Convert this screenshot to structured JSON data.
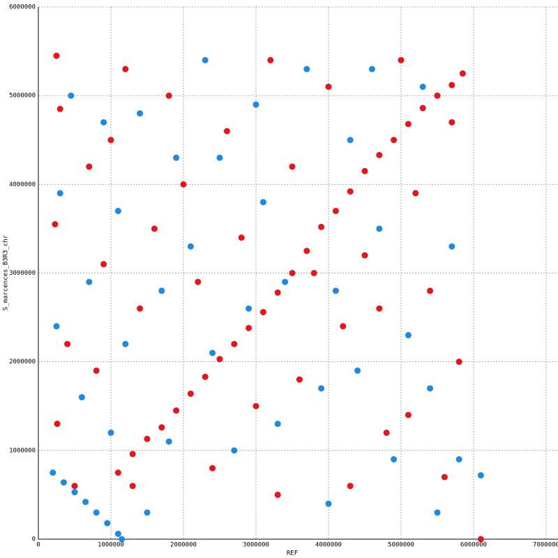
{
  "chart_data": {
    "type": "scatter",
    "xlabel": "REF",
    "ylabel": "S_marcences_B3R3_chr",
    "xlim": [
      0,
      7000000
    ],
    "xticks": [
      0,
      1000000,
      2000000,
      3000000,
      4000000,
      5000000,
      6000000,
      7000000
    ],
    "ylim": [
      0,
      6000000
    ],
    "yticks": [
      0,
      1000000,
      2000000,
      3000000,
      4000000,
      5000000,
      6000000
    ],
    "grid": true,
    "series": [
      {
        "color": "#e8141a",
        "x": [
          1100000,
          1300000,
          1500000,
          1700000,
          1900000,
          2100000,
          2300000,
          2500000,
          2700000,
          2900000,
          3100000,
          3300000,
          3500000,
          3700000,
          3900000,
          4100000,
          4300000,
          4500000,
          4700000,
          4900000,
          5100000,
          5300000,
          5500000,
          5700000,
          5850000,
          250000,
          300000,
          230000,
          400000,
          260000,
          500000,
          700000,
          900000,
          800000,
          1200000,
          1000000,
          1400000,
          1300000,
          1600000,
          1800000,
          2000000,
          2200000,
          2400000,
          2600000,
          2800000,
          3000000,
          3200000,
          3300000,
          3500000,
          3600000,
          3800000,
          4000000,
          4200000,
          4300000,
          4500000,
          4700000,
          4800000,
          5000000,
          5100000,
          5200000,
          5400000,
          5600000,
          5700000,
          5800000,
          6100000
        ],
        "values": [
          750000,
          960000,
          1130000,
          1260000,
          1450000,
          1640000,
          1830000,
          2030000,
          2200000,
          2380000,
          2560000,
          2780000,
          3000000,
          3250000,
          3520000,
          3700000,
          3920000,
          4150000,
          4330000,
          4500000,
          4680000,
          4860000,
          5000000,
          5120000,
          5250000,
          5450000,
          4850000,
          3550000,
          2200000,
          1300000,
          600000,
          4200000,
          3100000,
          1900000,
          5300000,
          4500000,
          2600000,
          600000,
          3500000,
          5000000,
          4000000,
          2900000,
          800000,
          4600000,
          3400000,
          1500000,
          5400000,
          500000,
          4200000,
          1800000,
          3000000,
          5100000,
          2400000,
          600000,
          3200000,
          2600000,
          1200000,
          5400000,
          1400000,
          3900000,
          2800000,
          700000,
          4700000,
          2000000,
          0
        ]
      },
      {
        "color": "#1e88e5",
        "x": [
          200000,
          350000,
          500000,
          650000,
          800000,
          950000,
          1100000,
          1150000,
          250000,
          300000,
          450000,
          600000,
          700000,
          900000,
          1000000,
          1100000,
          1200000,
          1400000,
          1500000,
          1700000,
          1800000,
          1900000,
          2100000,
          2300000,
          2400000,
          2500000,
          2700000,
          2900000,
          3000000,
          3100000,
          3300000,
          3400000,
          3700000,
          3900000,
          4000000,
          4100000,
          4300000,
          4400000,
          4600000,
          4700000,
          4900000,
          5100000,
          5300000,
          5400000,
          5500000,
          5700000,
          5800000,
          6100000
        ],
        "values": [
          750000,
          640000,
          530000,
          420000,
          300000,
          180000,
          60000,
          0,
          2400000,
          3900000,
          5000000,
          1600000,
          2900000,
          4700000,
          1200000,
          3700000,
          2200000,
          4800000,
          300000,
          2800000,
          1100000,
          4300000,
          3300000,
          5400000,
          2100000,
          4300000,
          1000000,
          2600000,
          4900000,
          3800000,
          1300000,
          2900000,
          5300000,
          1700000,
          400000,
          2800000,
          4500000,
          1900000,
          5300000,
          3500000,
          900000,
          2300000,
          5100000,
          1700000,
          300000,
          3300000,
          900000,
          720000
        ]
      }
    ]
  }
}
